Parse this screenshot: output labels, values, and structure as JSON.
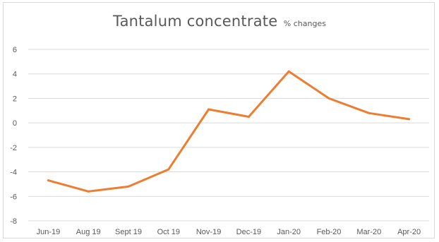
{
  "chart_data": {
    "type": "line",
    "title": "Tantalum concentrate",
    "subtitle": "% changes",
    "xlabel": "",
    "ylabel": "",
    "categories": [
      "Jun-19",
      "Aug 19",
      "Sept 19",
      "Oct 19",
      "Nov-19",
      "Dec-19",
      "Jan-20",
      "Feb-20",
      "Mar-20",
      "Apr-20"
    ],
    "series": [
      {
        "values": [
          -4.7,
          -5.6,
          -5.2,
          -3.8,
          1.1,
          0.5,
          4.2,
          2.0,
          0.8,
          0.3
        ],
        "color": "#ed7d31"
      }
    ],
    "ylim": [
      -8,
      6
    ],
    "yticks": [
      -8,
      -6,
      -4,
      -2,
      0,
      2,
      4,
      6
    ],
    "grid": true,
    "legend": "none"
  }
}
